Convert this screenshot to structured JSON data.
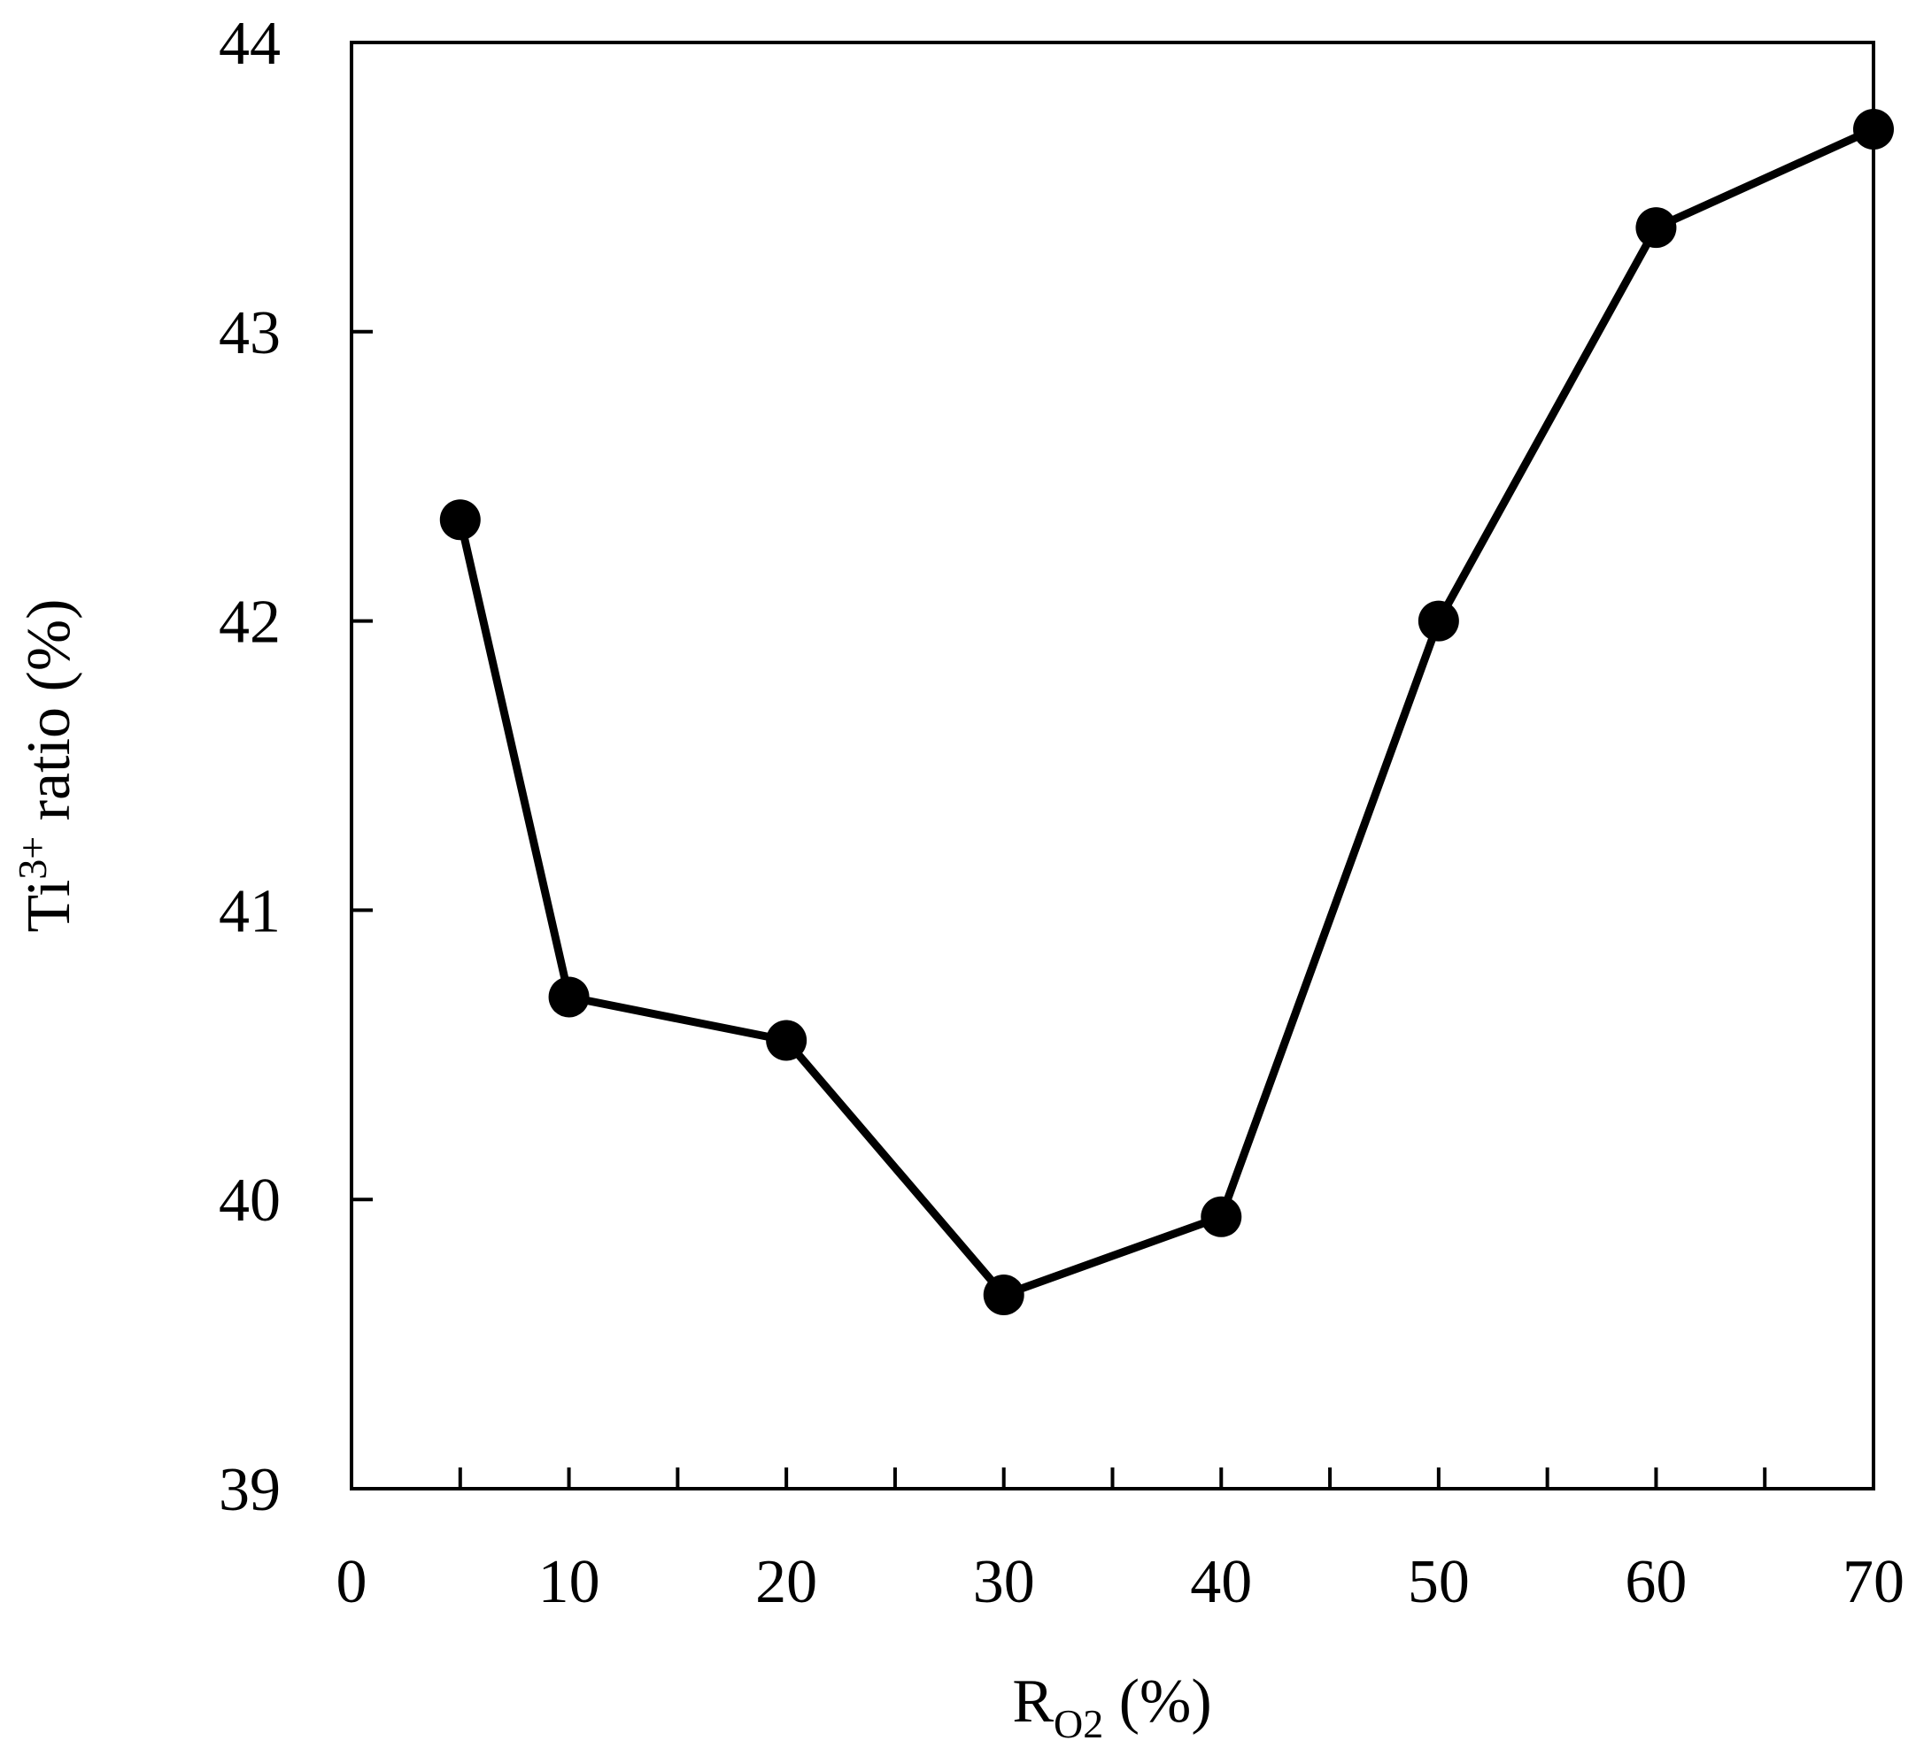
{
  "chart_data": {
    "type": "line",
    "title": "",
    "xlabel": {
      "main": "R",
      "subscript": "O2",
      "unit": " (%)"
    },
    "ylabel": {
      "main": "Ti",
      "superscript": "3+",
      "rest": " ratio (%)"
    },
    "xlim": [
      0,
      70
    ],
    "ylim": [
      39,
      44
    ],
    "xticks_major": [
      0,
      10,
      20,
      30,
      40,
      50,
      60,
      70
    ],
    "xticks_minor": [
      5,
      15,
      25,
      35,
      45,
      55,
      65
    ],
    "yticks": [
      39,
      40,
      41,
      42,
      43,
      44
    ],
    "grid": false,
    "legend": "none",
    "color": "#000000",
    "marker": "filled-circle",
    "series": [
      {
        "x": [
          5,
          10,
          20,
          30,
          40,
          50,
          60,
          70
        ],
        "y": [
          42.35,
          40.7,
          40.55,
          39.67,
          39.94,
          42.0,
          43.36,
          43.7
        ]
      }
    ]
  }
}
